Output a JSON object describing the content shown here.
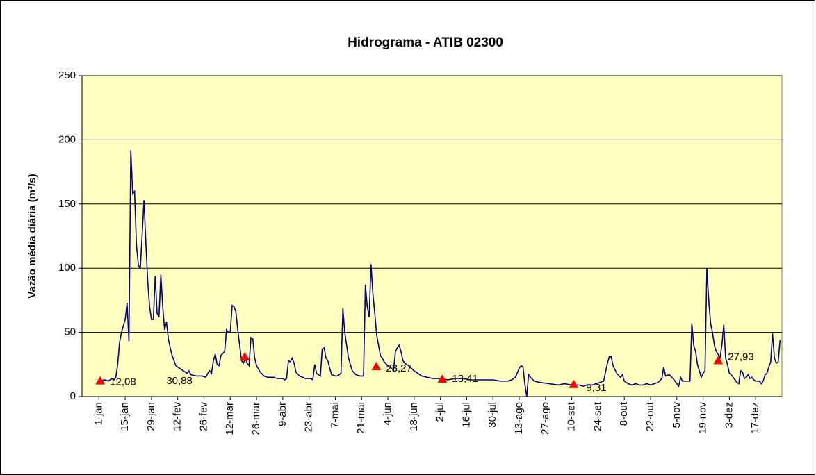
{
  "chart_data": {
    "type": "line",
    "title": "Hidrograma - ATIB 02300",
    "y_label": "Vazão média diária (m³/s)",
    "xlim": [
      -9,
      364
    ],
    "ylim": [
      0,
      250
    ],
    "yticks": [
      0,
      50,
      100,
      150,
      200,
      250
    ],
    "xticks": [
      {
        "value": 0,
        "label": "1-jan"
      },
      {
        "value": 14,
        "label": "15-jan"
      },
      {
        "value": 28,
        "label": "29-jan"
      },
      {
        "value": 42,
        "label": "12-fev"
      },
      {
        "value": 56,
        "label": "26-fev"
      },
      {
        "value": 70,
        "label": "12-mar"
      },
      {
        "value": 84,
        "label": "26-mar"
      },
      {
        "value": 98,
        "label": "9-abr"
      },
      {
        "value": 112,
        "label": "23-abr"
      },
      {
        "value": 126,
        "label": "7-mai"
      },
      {
        "value": 140,
        "label": "21-mai"
      },
      {
        "value": 154,
        "label": "4-jun"
      },
      {
        "value": 168,
        "label": "18-jun"
      },
      {
        "value": 182,
        "label": "2-jul"
      },
      {
        "value": 196,
        "label": "16-jul"
      },
      {
        "value": 210,
        "label": "30-jul"
      },
      {
        "value": 224,
        "label": "13-ago"
      },
      {
        "value": 238,
        "label": "27-ago"
      },
      {
        "value": 252,
        "label": "10-set"
      },
      {
        "value": 266,
        "label": "24-set"
      },
      {
        "value": 280,
        "label": "8-out"
      },
      {
        "value": 294,
        "label": "22-out"
      },
      {
        "value": 308,
        "label": "5-nov"
      },
      {
        "value": 322,
        "label": "19-nov"
      },
      {
        "value": 336,
        "label": "3-dez"
      },
      {
        "value": 350,
        "label": "17-dez"
      }
    ],
    "grid": true,
    "plot_background": "#ffffc0",
    "series": [
      {
        "color": "#000080",
        "x": [
          0,
          3,
          5,
          7,
          8,
          9,
          10,
          11,
          12,
          13,
          14,
          15,
          16,
          17,
          18,
          19,
          20,
          21,
          22,
          23,
          24,
          25,
          26,
          27,
          28,
          29,
          30,
          31,
          32,
          33,
          34,
          35,
          36,
          37,
          38,
          39,
          40,
          41,
          44,
          47,
          48,
          49,
          52,
          55,
          57,
          58,
          59,
          60,
          61,
          62,
          63,
          64,
          65,
          67,
          68,
          69,
          70,
          71,
          72,
          73,
          74,
          75,
          76,
          77,
          78,
          79,
          80,
          81,
          82,
          83,
          84,
          86,
          88,
          90,
          93,
          95,
          98,
          99,
          100,
          101,
          102,
          103,
          104,
          105,
          107,
          110,
          113,
          114,
          115,
          116,
          117,
          118,
          119,
          120,
          121,
          122,
          123,
          124,
          126,
          127,
          129,
          130,
          131,
          132,
          133,
          134,
          135,
          137,
          139,
          141,
          142,
          143,
          144,
          145,
          146,
          147,
          148,
          149,
          150,
          151,
          152,
          154,
          155,
          156,
          157,
          158,
          159,
          160,
          161,
          162,
          163,
          165,
          168,
          170,
          172,
          175,
          178,
          182,
          186,
          190,
          194,
          198,
          202,
          206,
          210,
          214,
          218,
          220,
          222,
          224,
          225,
          226,
          227,
          228,
          229,
          230,
          232,
          235,
          240,
          245,
          248,
          252,
          256,
          258,
          260,
          263,
          265,
          267,
          269,
          271,
          272,
          273,
          274,
          276,
          278,
          279,
          280,
          282,
          284,
          286,
          288,
          290,
          292,
          294,
          296,
          298,
          300,
          301,
          302,
          304,
          306,
          307,
          308,
          309,
          310,
          311,
          313,
          315,
          316,
          317,
          318,
          319,
          320,
          321,
          322,
          323,
          324,
          325,
          326,
          327,
          328,
          329,
          330,
          331,
          332,
          333,
          334,
          335,
          336,
          337,
          338,
          340,
          341,
          342,
          343,
          344,
          345,
          346,
          347,
          348,
          349,
          350,
          352,
          353,
          354,
          355,
          356,
          357,
          358,
          359,
          360,
          361,
          362,
          363
        ],
        "values": [
          12,
          13,
          12,
          14,
          13,
          15,
          25,
          42,
          50,
          55,
          60,
          73,
          43,
          192,
          158,
          160,
          118,
          103,
          99,
          125,
          153,
          120,
          90,
          70,
          60,
          60,
          94,
          65,
          62,
          95,
          70,
          52,
          58,
          45,
          38,
          32,
          28,
          24,
          21,
          18,
          20,
          17,
          16,
          16,
          15,
          18,
          20,
          18,
          28,
          33,
          25,
          24,
          32,
          35,
          52,
          50,
          50,
          71,
          70,
          66,
          52,
          40,
          28,
          26,
          30,
          26,
          24,
          46,
          45,
          30,
          24,
          19,
          16,
          15,
          15,
          14,
          14,
          13,
          14,
          28,
          27,
          30,
          26,
          19,
          16,
          14,
          14,
          13,
          25,
          18,
          17,
          16,
          37,
          38,
          30,
          28,
          22,
          17,
          16,
          16,
          18,
          69,
          50,
          40,
          30,
          25,
          20,
          17,
          16,
          16,
          87,
          70,
          62,
          103,
          80,
          65,
          48,
          40,
          32,
          30,
          27,
          24,
          23,
          22,
          20,
          35,
          38,
          40,
          35,
          28,
          26,
          24,
          20,
          18,
          16,
          15,
          14,
          14,
          13,
          14,
          14,
          13,
          13,
          13,
          13,
          12,
          12,
          13,
          15,
          22,
          24,
          23,
          10,
          0,
          17,
          15,
          12,
          11,
          10,
          9,
          10,
          9,
          9,
          8,
          9,
          9,
          10,
          11,
          12,
          26,
          31,
          31,
          24,
          18,
          15,
          17,
          12,
          10,
          9,
          10,
          9,
          9,
          10,
          9,
          10,
          11,
          14,
          23,
          16,
          17,
          14,
          12,
          10,
          8,
          15,
          12,
          12,
          12,
          57,
          40,
          35,
          25,
          20,
          15,
          18,
          20,
          100,
          75,
          57,
          50,
          40,
          35,
          33,
          30,
          40,
          56,
          30,
          25,
          18,
          17,
          15,
          11,
          10,
          20,
          19,
          14,
          15,
          17,
          14,
          15,
          13,
          12,
          12,
          10,
          12,
          17,
          18,
          23,
          27,
          49,
          30,
          26,
          27,
          44
        ]
      },
      {
        "color": "#ff0000",
        "marker": "triangle",
        "x": [
          0.7,
          77.8,
          147.8,
          183,
          253,
          330
        ],
        "values": [
          12.08,
          30.88,
          23.27,
          13.41,
          9.31,
          27.93
        ],
        "value_labels": [
          "12,08",
          "30,88",
          "23,27",
          "13,41",
          "9,31",
          "27,93"
        ]
      }
    ]
  }
}
